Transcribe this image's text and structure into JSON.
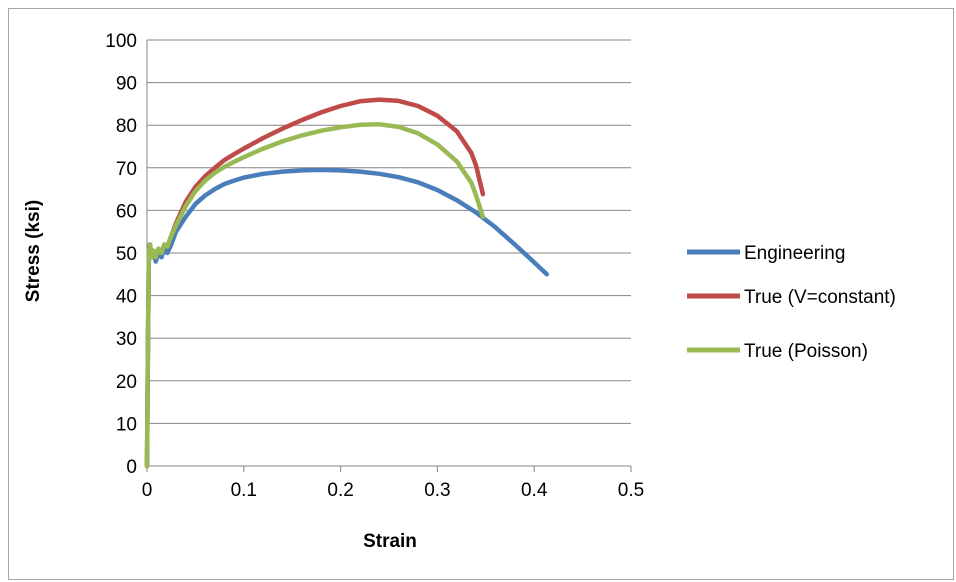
{
  "chart_data": {
    "type": "line",
    "title": "",
    "xlabel": "Strain",
    "ylabel": "Stress (ksi)",
    "xlim": [
      0,
      0.5
    ],
    "ylim": [
      0,
      100
    ],
    "x_ticks": [
      0,
      0.1,
      0.2,
      0.3,
      0.4,
      0.5
    ],
    "x_tick_labels": [
      "0",
      "0.1",
      "0.2",
      "0.3",
      "0.4",
      "0.5"
    ],
    "y_ticks": [
      0,
      10,
      20,
      30,
      40,
      50,
      60,
      70,
      80,
      90,
      100
    ],
    "y_tick_labels": [
      "0",
      "10",
      "20",
      "30",
      "40",
      "50",
      "60",
      "70",
      "80",
      "90",
      "100"
    ],
    "grid": "horizontal",
    "legend_position": "right",
    "series": [
      {
        "name": "Engineering",
        "color": "#4a7ebb",
        "points": [
          [
            0,
            0
          ],
          [
            0.001,
            30
          ],
          [
            0.002,
            50
          ],
          [
            0.003,
            52
          ],
          [
            0.005,
            49
          ],
          [
            0.007,
            50
          ],
          [
            0.009,
            48
          ],
          [
            0.012,
            50
          ],
          [
            0.015,
            49
          ],
          [
            0.018,
            51
          ],
          [
            0.021,
            50
          ],
          [
            0.025,
            52
          ],
          [
            0.03,
            55
          ],
          [
            0.04,
            58.5
          ],
          [
            0.05,
            61.5
          ],
          [
            0.06,
            63.5
          ],
          [
            0.07,
            65
          ],
          [
            0.08,
            66.2
          ],
          [
            0.09,
            67
          ],
          [
            0.1,
            67.7
          ],
          [
            0.12,
            68.6
          ],
          [
            0.14,
            69.1
          ],
          [
            0.16,
            69.4
          ],
          [
            0.18,
            69.5
          ],
          [
            0.2,
            69.4
          ],
          [
            0.22,
            69.1
          ],
          [
            0.24,
            68.6
          ],
          [
            0.26,
            67.8
          ],
          [
            0.28,
            66.6
          ],
          [
            0.3,
            64.8
          ],
          [
            0.32,
            62.4
          ],
          [
            0.34,
            59.5
          ],
          [
            0.36,
            56.0
          ],
          [
            0.38,
            52.0
          ],
          [
            0.4,
            47.8
          ],
          [
            0.413,
            45.0
          ]
        ]
      },
      {
        "name": "True (V=constant)",
        "color": "#be4b48",
        "points": [
          [
            0,
            0
          ],
          [
            0.001,
            30
          ],
          [
            0.002,
            50
          ],
          [
            0.003,
            52
          ],
          [
            0.005,
            49
          ],
          [
            0.007,
            50.5
          ],
          [
            0.009,
            49
          ],
          [
            0.012,
            51
          ],
          [
            0.015,
            50
          ],
          [
            0.018,
            52
          ],
          [
            0.021,
            51.5
          ],
          [
            0.025,
            54
          ],
          [
            0.03,
            57
          ],
          [
            0.04,
            62
          ],
          [
            0.05,
            65.5
          ],
          [
            0.06,
            68
          ],
          [
            0.07,
            70
          ],
          [
            0.08,
            71.8
          ],
          [
            0.09,
            73.2
          ],
          [
            0.1,
            74.5
          ],
          [
            0.12,
            77
          ],
          [
            0.14,
            79.2
          ],
          [
            0.16,
            81.2
          ],
          [
            0.18,
            83
          ],
          [
            0.2,
            84.5
          ],
          [
            0.22,
            85.6
          ],
          [
            0.24,
            86
          ],
          [
            0.26,
            85.7
          ],
          [
            0.28,
            84.5
          ],
          [
            0.3,
            82.2
          ],
          [
            0.32,
            78.6
          ],
          [
            0.335,
            73.5
          ],
          [
            0.34,
            70.5
          ],
          [
            0.347,
            63.8
          ]
        ]
      },
      {
        "name": "True (Poisson)",
        "color": "#98b954",
        "points": [
          [
            0,
            0
          ],
          [
            0.001,
            30
          ],
          [
            0.002,
            50
          ],
          [
            0.003,
            52
          ],
          [
            0.005,
            49
          ],
          [
            0.007,
            50.5
          ],
          [
            0.009,
            49
          ],
          [
            0.012,
            51
          ],
          [
            0.015,
            50
          ],
          [
            0.018,
            52
          ],
          [
            0.021,
            51.5
          ],
          [
            0.025,
            54
          ],
          [
            0.03,
            56.5
          ],
          [
            0.04,
            61
          ],
          [
            0.05,
            64.5
          ],
          [
            0.06,
            67
          ],
          [
            0.07,
            68.8
          ],
          [
            0.08,
            70.2
          ],
          [
            0.09,
            71.4
          ],
          [
            0.1,
            72.5
          ],
          [
            0.12,
            74.5
          ],
          [
            0.14,
            76.2
          ],
          [
            0.16,
            77.6
          ],
          [
            0.18,
            78.7
          ],
          [
            0.2,
            79.5
          ],
          [
            0.22,
            80.1
          ],
          [
            0.24,
            80.2
          ],
          [
            0.26,
            79.6
          ],
          [
            0.28,
            78.1
          ],
          [
            0.3,
            75.5
          ],
          [
            0.32,
            71.5
          ],
          [
            0.335,
            66.5
          ],
          [
            0.34,
            63.5
          ],
          [
            0.347,
            58.5
          ]
        ]
      }
    ]
  }
}
